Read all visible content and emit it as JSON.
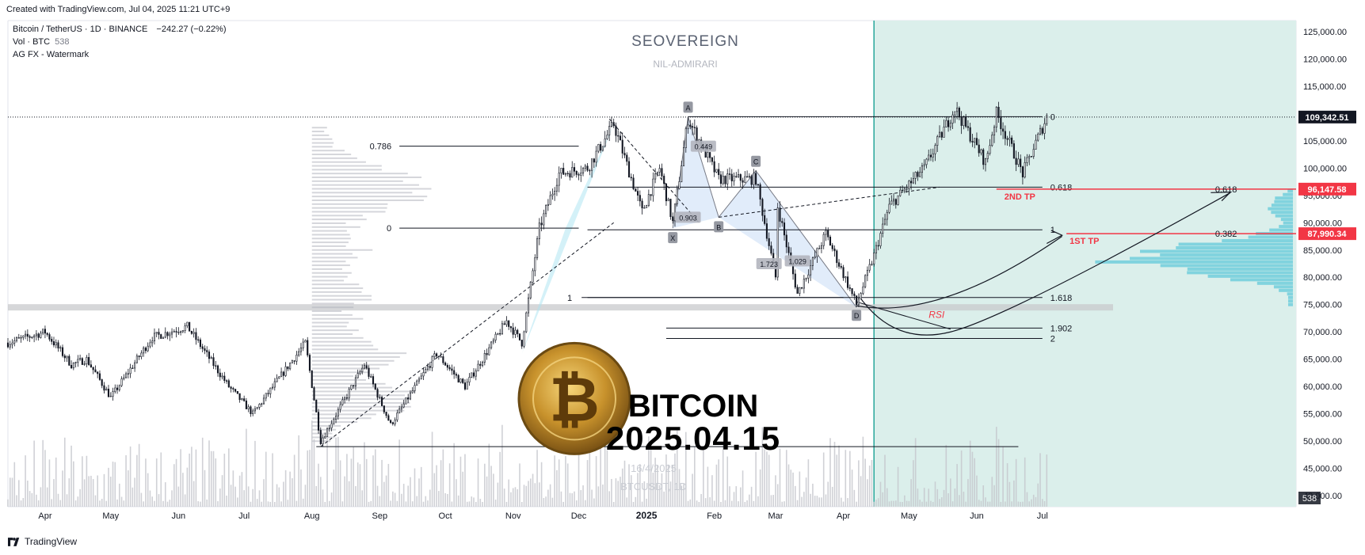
{
  "caption": {
    "created": "Created with TradingView.com, Jul 04, 2025 11:21 UTC+9",
    "footer": "TradingView"
  },
  "legend": {
    "symbol": "Bitcoin / TetherUS · 1D · BINANCE",
    "change": "−242.27 (−0.22%)",
    "volume_label": "Vol · BTC",
    "volume_value": "538",
    "indicator": "AG FX - Watermark"
  },
  "watermark": {
    "brand": "SEOVEREIGN",
    "sub": "NIL-ADMIRARI",
    "headline1": "BITCOIN",
    "headline2": "2025.04.15",
    "faint_date": "16/4/2025",
    "faint_symbol": "BTCUSDT, 1D"
  },
  "chart_data": {
    "type": "candlestick",
    "symbol": "BTCUSDT",
    "timeframe": "1D",
    "exchange": "BINANCE",
    "ylim": [
      38000,
      127000
    ],
    "y_ticks": [
      40000,
      45000,
      50000,
      55000,
      60000,
      65000,
      70000,
      75000,
      80000,
      85000,
      90000,
      95000,
      100000,
      105000,
      110000,
      115000,
      120000,
      125000
    ],
    "y_tick_labels": [
      "40,000.00",
      "45,000.00",
      "50,000.00",
      "55,000.00",
      "60,000.00",
      "65,000.00",
      "70,000.00",
      "75,000.00",
      "80,000.00",
      "85,000.00",
      "90,000.00",
      "95,000.00",
      "100,000.00",
      "105,000.00",
      "110,000.00",
      "115,000.00",
      "120,000.00",
      "125,000.00"
    ],
    "x_start": "2024-03-15",
    "x_end": "2025-10-25",
    "x_ticks": [
      {
        "date": "2024-04-01",
        "label": "Apr"
      },
      {
        "date": "2024-05-01",
        "label": "May"
      },
      {
        "date": "2024-06-01",
        "label": "Jun"
      },
      {
        "date": "2024-07-01",
        "label": "Jul"
      },
      {
        "date": "2024-08-01",
        "label": "Aug"
      },
      {
        "date": "2024-09-01",
        "label": "Sep"
      },
      {
        "date": "2024-10-01",
        "label": "Oct"
      },
      {
        "date": "2024-11-01",
        "label": "Nov"
      },
      {
        "date": "2024-12-01",
        "label": "Dec"
      },
      {
        "date": "2025-01-01",
        "label": "2025",
        "bold": true
      },
      {
        "date": "2025-02-01",
        "label": "Feb"
      },
      {
        "date": "2025-03-01",
        "label": "Mar"
      },
      {
        "date": "2025-04-01",
        "label": "Apr"
      },
      {
        "date": "2025-05-01",
        "label": "May"
      },
      {
        "date": "2025-06-01",
        "label": "Jun"
      },
      {
        "date": "2025-07-01",
        "label": "Jul"
      }
    ],
    "price_path": [
      [
        "2024-03-15",
        68000
      ],
      [
        "2024-04-01",
        70000
      ],
      [
        "2024-04-13",
        64000
      ],
      [
        "2024-04-20",
        65000
      ],
      [
        "2024-05-01",
        58000
      ],
      [
        "2024-05-20",
        69000
      ],
      [
        "2024-06-05",
        71000
      ],
      [
        "2024-06-24",
        60000
      ],
      [
        "2024-07-05",
        55000
      ],
      [
        "2024-07-29",
        68000
      ],
      [
        "2024-08-05",
        50000
      ],
      [
        "2024-08-25",
        64000
      ],
      [
        "2024-09-06",
        53000
      ],
      [
        "2024-09-27",
        66000
      ],
      [
        "2024-10-10",
        60000
      ],
      [
        "2024-10-29",
        72000
      ],
      [
        "2024-11-05",
        68000
      ],
      [
        "2024-11-13",
        89000
      ],
      [
        "2024-11-22",
        99000
      ],
      [
        "2024-12-05",
        100000
      ],
      [
        "2024-12-17",
        108000
      ],
      [
        "2024-12-30",
        92000
      ],
      [
        "2025-01-07",
        100000
      ],
      [
        "2025-01-13",
        90000
      ],
      [
        "2025-01-20",
        109000
      ],
      [
        "2025-02-03",
        98000
      ],
      [
        "2025-02-20",
        98000
      ],
      [
        "2025-03-01",
        80000
      ],
      [
        "2025-03-02",
        93000
      ],
      [
        "2025-03-11",
        77000
      ],
      [
        "2025-03-24",
        88000
      ],
      [
        "2025-04-07",
        75000
      ],
      [
        "2025-04-15",
        84000
      ],
      [
        "2025-04-22",
        93000
      ],
      [
        "2025-05-08",
        100000
      ],
      [
        "2025-05-22",
        111000
      ],
      [
        "2025-06-05",
        101000
      ],
      [
        "2025-06-10",
        110000
      ],
      [
        "2025-06-22",
        99000
      ],
      [
        "2025-07-03",
        109342
      ]
    ],
    "last_price": 109342.51,
    "last_price_label": "109,342.51",
    "volume_label": "538",
    "price_labels": [
      {
        "value": 96147.58,
        "label": "96,147.58",
        "color": "#f23645"
      },
      {
        "value": 87990.34,
        "label": "87,990.34",
        "color": "#f23645"
      }
    ],
    "targets": [
      {
        "name": "2ND TP",
        "price": 96147.58
      },
      {
        "name": "1ST TP",
        "price": 87990.34
      }
    ],
    "target_fibs": [
      "0.618",
      "0.382"
    ],
    "fib_levels_left": [
      {
        "label": "0.786",
        "price": 104000
      },
      {
        "label": "0",
        "price": 89000
      },
      {
        "label": "1",
        "price": 76300
      }
    ],
    "fib_levels_right": [
      {
        "label": "0",
        "price": 109400
      },
      {
        "label": "0.618",
        "price": 96500
      },
      {
        "label": "1",
        "price": 88700
      },
      {
        "label": "1.618",
        "price": 76300
      },
      {
        "label": "1.902",
        "price": 70700
      },
      {
        "label": "2",
        "price": 68800
      }
    ],
    "pattern_points": [
      {
        "name": "X",
        "date": "2025-01-13",
        "price": 89000
      },
      {
        "name": "A",
        "date": "2025-01-20",
        "price": 109400
      },
      {
        "name": "B",
        "date": "2025-02-03",
        "price": 91000
      },
      {
        "name": "C",
        "date": "2025-02-20",
        "price": 99500
      },
      {
        "name": "D",
        "date": "2025-04-07",
        "price": 74500
      }
    ],
    "pattern_ratios": [
      "0.449",
      "0.903",
      "1.723",
      "1.029"
    ],
    "annotations": [
      "RSI"
    ],
    "highlight_start": "2025-04-15",
    "grid": false
  }
}
